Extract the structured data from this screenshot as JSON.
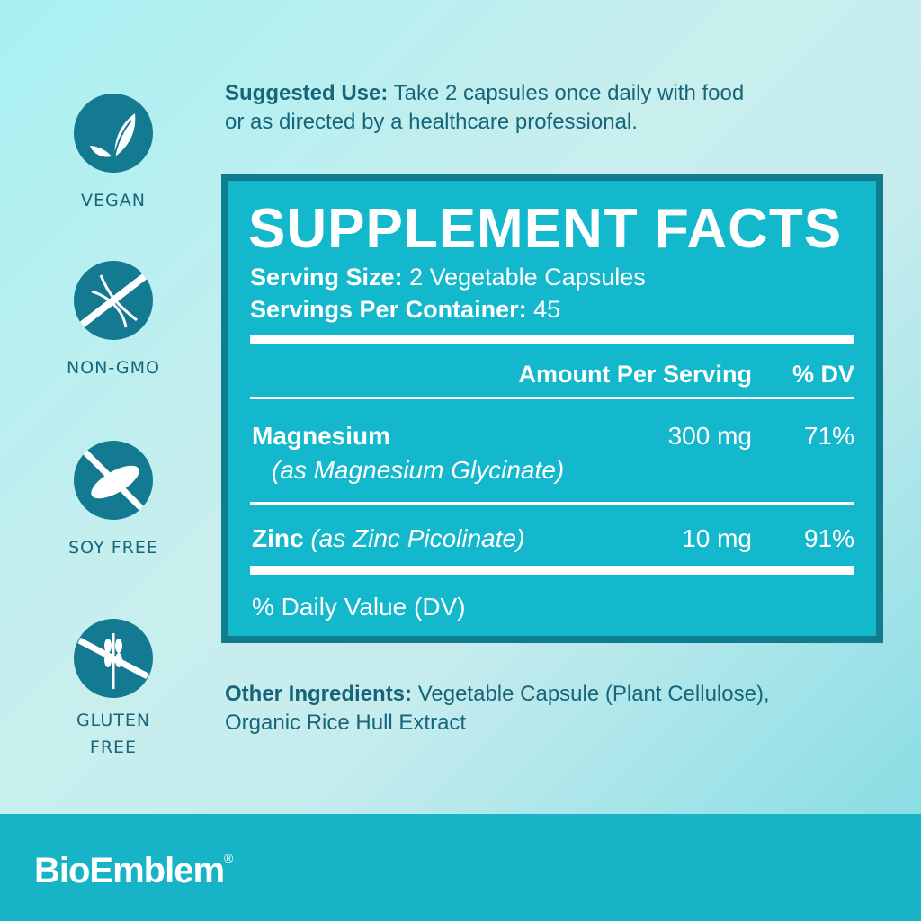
{
  "badges": [
    {
      "label": "VEGAN",
      "icon": "leaf-icon"
    },
    {
      "label": "NON-GMO",
      "icon": "dna-crossed-icon"
    },
    {
      "label": "SOY FREE",
      "icon": "soybean-crossed-icon"
    },
    {
      "label_1": "GLUTEN",
      "label_2": "FREE",
      "icon": "wheat-crossed-icon"
    }
  ],
  "suggested_use": {
    "label": "Suggested Use:",
    "line1": " Take 2 capsules once daily with food",
    "line2": "or as directed by a healthcare professional."
  },
  "facts": {
    "title": "SUPPLEMENT FACTS",
    "serving_size_label": "Serving Size:",
    "serving_size": " 2 Vegetable Capsules",
    "servings_label": "Servings Per Container:",
    "servings": " 45",
    "col_amount": "Amount Per Serving",
    "col_dv": "% DV",
    "rows": [
      {
        "name": "Magnesium",
        "source": "(as Magnesium Glycinate)",
        "amount": "300 mg",
        "dv": "71%"
      },
      {
        "name": "Zinc",
        "source": " (as Zinc Picolinate)",
        "amount": "10 mg",
        "dv": "91%"
      }
    ],
    "footnote": "% Daily Value (DV)"
  },
  "other": {
    "label": "Other Ingredients:",
    "line1": " Vegetable Capsule (Plant Cellulose),",
    "line2": "Organic Rice Hull Extract"
  },
  "brand": {
    "name": "BioEmblem",
    "mark": "®"
  },
  "colors": {
    "primary": "#14b8cc",
    "dark": "#0f7c90",
    "text": "#17657a"
  }
}
